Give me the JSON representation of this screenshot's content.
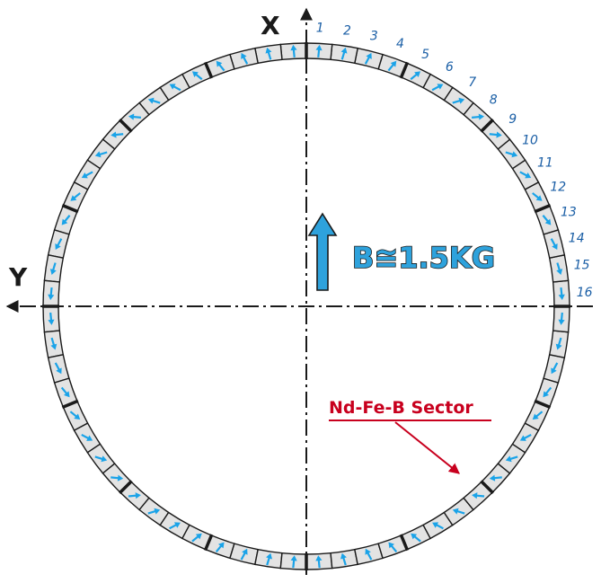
{
  "axes": {
    "x_label": "X",
    "y_label": "Y"
  },
  "field_label": "B≅1.5KG",
  "sector_label": "Nd-Fe-B Sector",
  "sector_numbers": [
    "1",
    "2",
    "3",
    "4",
    "5",
    "6",
    "7",
    "8",
    "9",
    "10",
    "11",
    "12",
    "13",
    "14",
    "15",
    "16"
  ],
  "sector_count": 64,
  "magnetization_pattern": "Halbach dipole (arrow angle = 2 × sector angle)",
  "colors": {
    "arrow": "#1aa3e8",
    "sector_fill": "#e3e3e3",
    "outline": "#1a1a1a",
    "numbers": "#1b5fa6",
    "sector_label": "#c8001e",
    "field_arrow": "#2ea2dc"
  }
}
